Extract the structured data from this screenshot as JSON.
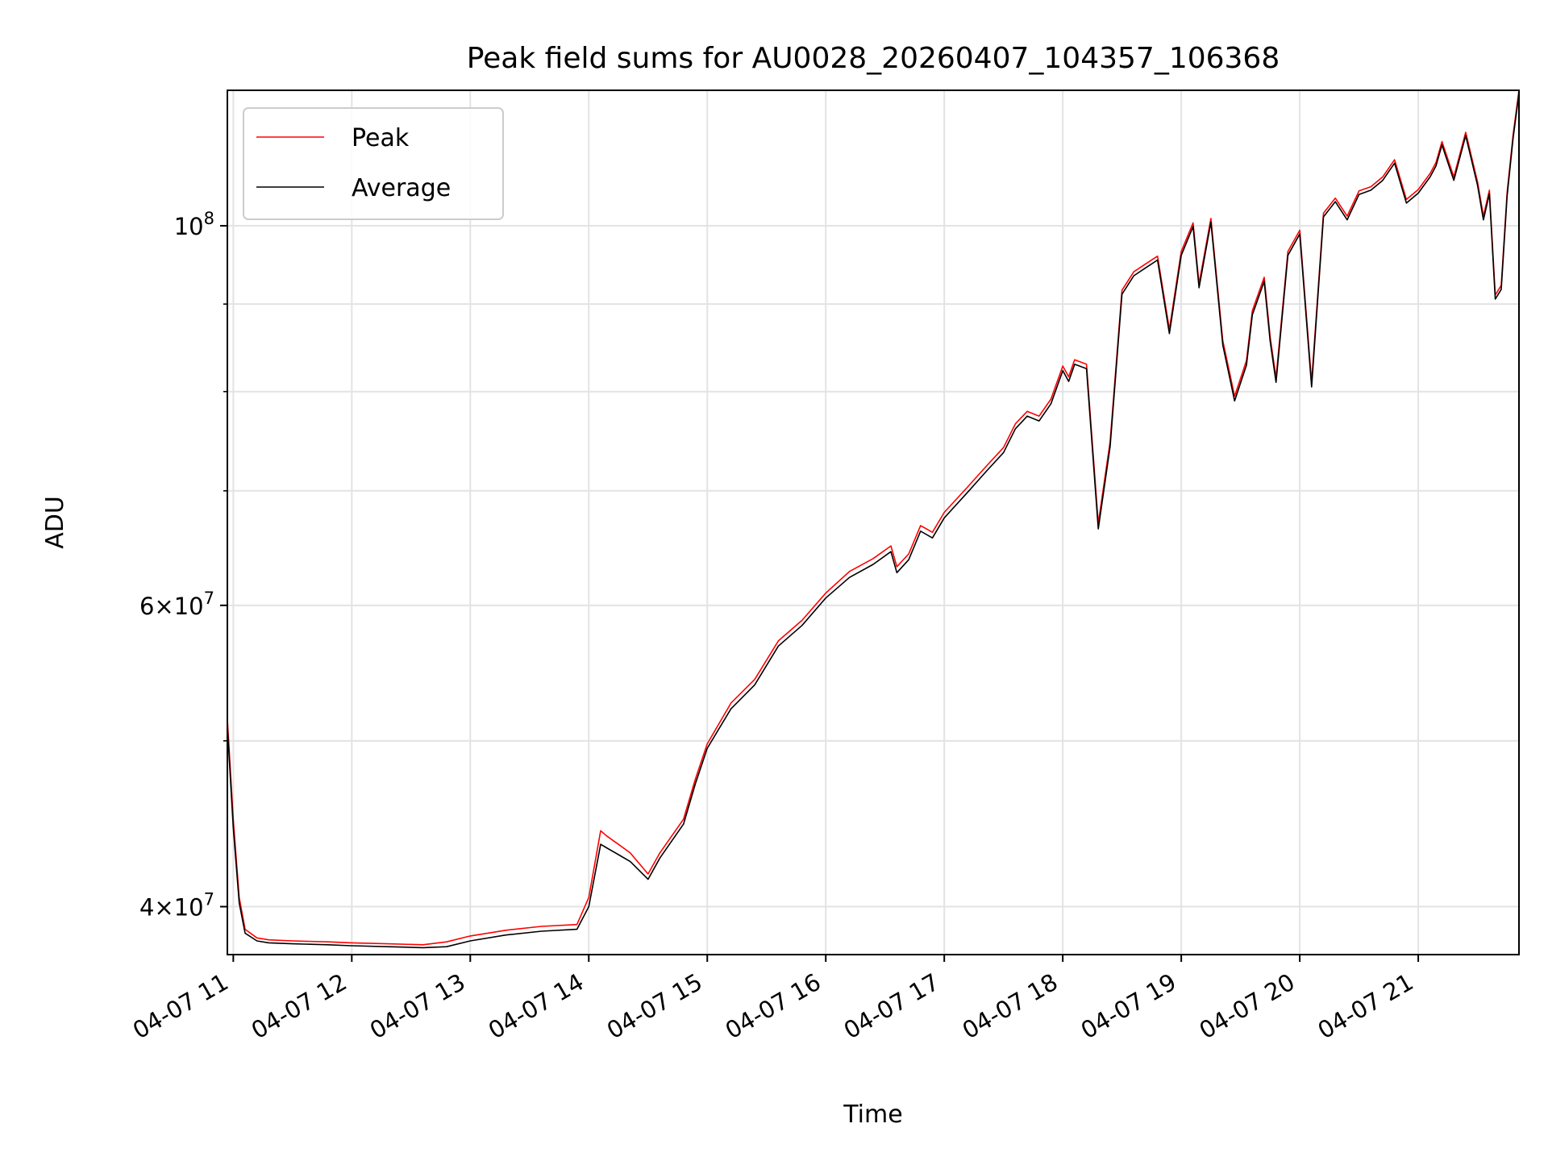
{
  "chart_data": {
    "type": "line",
    "title": "Peak field sums for AU0028_20260407_104357_106368",
    "xlabel": "Time",
    "ylabel": "ADU",
    "y_scale": "log",
    "xlim_hours": [
      10.95,
      21.85
    ],
    "ylim": [
      37500000,
      120000000
    ],
    "grid": true,
    "legend_position": "upper-left",
    "x_tick_labels": [
      "04-07 11",
      "04-07 12",
      "04-07 13",
      "04-07 14",
      "04-07 15",
      "04-07 16",
      "04-07 17",
      "04-07 18",
      "04-07 19",
      "04-07 20",
      "04-07 21"
    ],
    "x_tick_hours": [
      11,
      12,
      13,
      14,
      15,
      16,
      17,
      18,
      19,
      20,
      21
    ],
    "y_major_ticks": [
      {
        "value": 40000000,
        "base": "4",
        "exp": "7"
      },
      {
        "value": 60000000,
        "base": "6",
        "exp": "7"
      },
      {
        "value": 100000000,
        "base": "",
        "exp": "8"
      }
    ],
    "y_minor_ticks": [
      50000000,
      70000000,
      80000000,
      90000000
    ],
    "colors": {
      "peak": "#ff0000",
      "average": "#000000"
    },
    "series": [
      {
        "name": "Peak",
        "x_hours": [
          10.95,
          11.0,
          11.05,
          11.1,
          11.2,
          11.3,
          11.5,
          11.8,
          12.0,
          12.3,
          12.6,
          12.8,
          13.0,
          13.3,
          13.6,
          13.9,
          14.0,
          14.1,
          14.15,
          14.25,
          14.35,
          14.5,
          14.6,
          14.8,
          14.9,
          15.0,
          15.2,
          15.4,
          15.6,
          15.8,
          16.0,
          16.2,
          16.4,
          16.55,
          16.6,
          16.7,
          16.8,
          16.9,
          17.0,
          17.2,
          17.35,
          17.5,
          17.6,
          17.7,
          17.8,
          17.9,
          18.0,
          18.05,
          18.1,
          18.2,
          18.3,
          18.4,
          18.5,
          18.6,
          18.7,
          18.8,
          18.9,
          19.0,
          19.1,
          19.15,
          19.25,
          19.35,
          19.45,
          19.55,
          19.6,
          19.7,
          19.75,
          19.8,
          19.9,
          20.0,
          20.1,
          20.2,
          20.3,
          20.4,
          20.5,
          20.6,
          20.7,
          20.8,
          20.9,
          21.0,
          21.1,
          21.15,
          21.2,
          21.3,
          21.4,
          21.5,
          21.55,
          21.6,
          21.65,
          21.7,
          21.75,
          21.8,
          21.85
        ],
        "values": [
          51500000,
          45000000,
          40500000,
          38800000,
          38350000,
          38250000,
          38200000,
          38150000,
          38100000,
          38050000,
          38000000,
          38150000,
          38450000,
          38750000,
          38950000,
          39050000,
          40500000,
          44300000,
          44000000,
          43500000,
          43000000,
          41800000,
          43000000,
          45000000,
          47500000,
          49800000,
          52600000,
          54300000,
          57200000,
          58800000,
          61000000,
          62800000,
          63900000,
          65000000,
          63200000,
          64300000,
          66800000,
          66200000,
          68000000,
          70400000,
          72300000,
          74200000,
          76600000,
          77900000,
          77400000,
          79200000,
          82800000,
          81600000,
          83500000,
          83000000,
          67000000,
          74800000,
          91700000,
          94000000,
          95000000,
          96000000,
          87000000,
          96600000,
          100400000,
          92500000,
          101000000,
          85700000,
          79500000,
          83400000,
          89200000,
          93300000,
          86100000,
          81500000,
          96600000,
          99400000,
          81000000,
          101700000,
          103800000,
          101300000,
          104800000,
          105400000,
          106800000,
          109300000,
          103600000,
          105000000,
          107300000,
          108900000,
          112000000,
          106800000,
          113400000,
          106100000,
          101300000,
          104900000,
          91100000,
          92300000,
          104600000,
          113000000,
          120000000
        ]
      },
      {
        "name": "Average",
        "x_hours": [
          10.95,
          11.0,
          11.05,
          11.1,
          11.2,
          11.3,
          11.5,
          11.8,
          12.0,
          12.3,
          12.6,
          12.8,
          13.0,
          13.3,
          13.6,
          13.9,
          14.0,
          14.1,
          14.15,
          14.25,
          14.35,
          14.5,
          14.6,
          14.8,
          14.9,
          15.0,
          15.2,
          15.4,
          15.6,
          15.8,
          16.0,
          16.2,
          16.4,
          16.55,
          16.6,
          16.7,
          16.8,
          16.9,
          17.0,
          17.2,
          17.35,
          17.5,
          17.6,
          17.7,
          17.8,
          17.9,
          18.0,
          18.05,
          18.1,
          18.2,
          18.3,
          18.4,
          18.5,
          18.6,
          18.7,
          18.8,
          18.9,
          19.0,
          19.1,
          19.15,
          19.25,
          19.35,
          19.45,
          19.55,
          19.6,
          19.7,
          19.75,
          19.8,
          19.9,
          20.0,
          20.1,
          20.2,
          20.3,
          20.4,
          20.5,
          20.6,
          20.7,
          20.8,
          20.9,
          21.0,
          21.1,
          21.15,
          21.2,
          21.3,
          21.4,
          21.5,
          21.55,
          21.6,
          21.65,
          21.7,
          21.75,
          21.8,
          21.85
        ],
        "values": [
          51000000,
          44500000,
          40200000,
          38600000,
          38200000,
          38100000,
          38050000,
          38000000,
          37950000,
          37900000,
          37850000,
          37900000,
          38200000,
          38500000,
          38700000,
          38800000,
          40000000,
          43500000,
          43300000,
          42900000,
          42500000,
          41500000,
          42700000,
          44700000,
          47200000,
          49500000,
          52200000,
          53900000,
          56800000,
          58400000,
          60600000,
          62300000,
          63400000,
          64500000,
          62700000,
          63800000,
          66300000,
          65700000,
          67500000,
          69900000,
          71800000,
          73700000,
          76100000,
          77400000,
          76900000,
          78700000,
          82300000,
          81100000,
          83000000,
          82500000,
          66500000,
          74300000,
          91200000,
          93500000,
          94500000,
          95500000,
          86500000,
          96100000,
          99900000,
          92000000,
          100500000,
          85200000,
          79000000,
          82900000,
          88700000,
          92800000,
          85600000,
          81000000,
          96100000,
          98900000,
          80500000,
          101200000,
          103300000,
          100800000,
          104300000,
          104900000,
          106300000,
          108800000,
          103100000,
          104500000,
          106800000,
          108400000,
          111500000,
          106300000,
          112900000,
          105600000,
          100800000,
          104400000,
          90600000,
          91800000,
          104100000,
          112500000,
          119500000
        ]
      }
    ]
  }
}
